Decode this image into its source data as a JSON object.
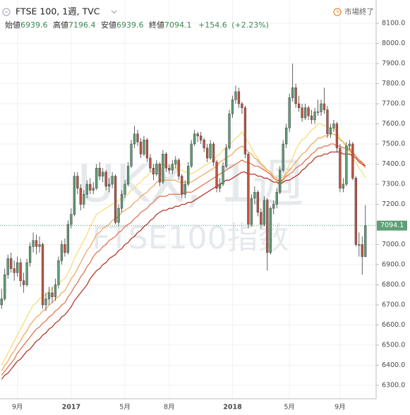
{
  "chart_data": {
    "type": "candlestick",
    "symbol": "FTSE 100, 1週, TVC",
    "ohlc_labels": [
      "始値",
      "高値",
      "安値",
      "終値"
    ],
    "change": "+154.6",
    "change_pct": "(+2.23%)",
    "status": "市場終了",
    "watermark": [
      "UKX, 1週",
      "FTSE100指数"
    ],
    "up_color": "#5f9f76",
    "down_color": "#c2533f",
    "grid": true,
    "ylim": [
      6233,
      8216
    ],
    "yticks": [
      {
        "value": 6300,
        "label": "6300.0"
      },
      {
        "value": 6400,
        "label": "6400.0"
      },
      {
        "value": 6500,
        "label": "6500.0"
      },
      {
        "value": 6600,
        "label": "6600.0"
      },
      {
        "value": 6700,
        "label": "6700.0"
      },
      {
        "value": 6800,
        "label": "6800.0"
      },
      {
        "value": 6900,
        "label": "6900.0"
      },
      {
        "value": 7000,
        "label": "7000.0"
      },
      {
        "value": 7100,
        "label": "7100.0"
      },
      {
        "value": 7200,
        "label": "7200.0"
      },
      {
        "value": 7300,
        "label": "7300.0"
      },
      {
        "value": 7400,
        "label": "7400.0"
      },
      {
        "value": 7500,
        "label": "7500.0"
      },
      {
        "value": 7600,
        "label": "7600.0"
      },
      {
        "value": 7700,
        "label": "7700.0"
      },
      {
        "value": 7800,
        "label": "7800.0"
      },
      {
        "value": 7900,
        "label": "7900.0"
      },
      {
        "value": 8000,
        "label": "8000.0"
      },
      {
        "value": 8100,
        "label": "8100.0"
      }
    ],
    "categories": [
      null,
      null,
      null,
      null,
      null,
      "9月",
      null,
      null,
      null,
      null,
      null,
      null,
      null,
      null,
      null,
      null,
      null,
      null,
      null,
      null,
      null,
      null,
      "2017",
      null,
      null,
      null,
      null,
      null,
      null,
      null,
      null,
      null,
      null,
      null,
      null,
      null,
      null,
      null,
      null,
      "5月",
      null,
      null,
      null,
      null,
      null,
      null,
      null,
      null,
      null,
      null,
      null,
      null,
      null,
      "8月",
      null,
      null,
      null,
      null,
      null,
      null,
      null,
      null,
      null,
      null,
      null,
      null,
      null,
      null,
      null,
      null,
      null,
      null,
      null,
      "2018",
      null,
      null,
      null,
      null,
      null,
      null,
      null,
      null,
      null,
      null,
      null,
      null,
      null,
      null,
      null,
      null,
      null,
      "5月",
      null,
      null,
      null,
      null,
      null,
      null,
      null,
      null,
      null,
      null,
      null,
      null,
      null,
      null,
      null,
      "9月",
      null,
      null,
      null,
      null,
      null,
      null,
      null,
      null
    ],
    "candles": [
      [
        6700,
        6780,
        6680,
        6730
      ],
      [
        6730,
        6880,
        6720,
        6850
      ],
      [
        6850,
        6950,
        6830,
        6930
      ],
      [
        6930,
        6960,
        6860,
        6880
      ],
      [
        6880,
        6920,
        6820,
        6860
      ],
      [
        6860,
        6940,
        6840,
        6910
      ],
      [
        6910,
        6930,
        6790,
        6820
      ],
      [
        6820,
        6860,
        6760,
        6800
      ],
      [
        6800,
        6930,
        6790,
        6910
      ],
      [
        6910,
        7010,
        6890,
        6990
      ],
      [
        6990,
        7060,
        6960,
        7020
      ],
      [
        7020,
        7050,
        6950,
        6990
      ],
      [
        6990,
        7040,
        6960,
        7000
      ],
      [
        7000,
        7010,
        6680,
        6700
      ],
      [
        6700,
        6760,
        6670,
        6730
      ],
      [
        6730,
        6790,
        6700,
        6760
      ],
      [
        6760,
        6790,
        6710,
        6740
      ],
      [
        6740,
        6830,
        6720,
        6800
      ],
      [
        6800,
        6940,
        6780,
        6920
      ],
      [
        6920,
        7020,
        6900,
        7000
      ],
      [
        7000,
        7030,
        6940,
        6960
      ],
      [
        6960,
        7120,
        6950,
        7100
      ],
      [
        7100,
        7180,
        7080,
        7150
      ],
      [
        7150,
        7360,
        7140,
        7340
      ],
      [
        7340,
        7360,
        7250,
        7280
      ],
      [
        7280,
        7300,
        7170,
        7200
      ],
      [
        7200,
        7270,
        7180,
        7250
      ],
      [
        7250,
        7320,
        7230,
        7300
      ],
      [
        7300,
        7330,
        7250,
        7270
      ],
      [
        7270,
        7310,
        7250,
        7280
      ],
      [
        7280,
        7400,
        7270,
        7380
      ],
      [
        7380,
        7410,
        7320,
        7340
      ],
      [
        7340,
        7380,
        7310,
        7360
      ],
      [
        7360,
        7370,
        7270,
        7290
      ],
      [
        7290,
        7330,
        7260,
        7300
      ],
      [
        7300,
        7360,
        7280,
        7340
      ],
      [
        7340,
        7350,
        7100,
        7110
      ],
      [
        7110,
        7200,
        7090,
        7180
      ],
      [
        7180,
        7270,
        7160,
        7250
      ],
      [
        7250,
        7320,
        7230,
        7300
      ],
      [
        7300,
        7410,
        7290,
        7390
      ],
      [
        7390,
        7520,
        7380,
        7500
      ],
      [
        7500,
        7590,
        7480,
        7550
      ],
      [
        7550,
        7570,
        7490,
        7510
      ],
      [
        7510,
        7530,
        7430,
        7450
      ],
      [
        7450,
        7540,
        7440,
        7520
      ],
      [
        7520,
        7530,
        7410,
        7430
      ],
      [
        7430,
        7450,
        7360,
        7380
      ],
      [
        7380,
        7400,
        7320,
        7350
      ],
      [
        7350,
        7420,
        7340,
        7400
      ],
      [
        7400,
        7410,
        7290,
        7310
      ],
      [
        7310,
        7470,
        7300,
        7450
      ],
      [
        7450,
        7460,
        7360,
        7380
      ],
      [
        7380,
        7400,
        7350,
        7370
      ],
      [
        7370,
        7420,
        7350,
        7400
      ],
      [
        7400,
        7440,
        7380,
        7420
      ],
      [
        7420,
        7430,
        7320,
        7340
      ],
      [
        7340,
        7350,
        7230,
        7250
      ],
      [
        7250,
        7320,
        7230,
        7300
      ],
      [
        7300,
        7410,
        7290,
        7390
      ],
      [
        7390,
        7520,
        7380,
        7500
      ],
      [
        7500,
        7570,
        7490,
        7550
      ],
      [
        7550,
        7560,
        7510,
        7540
      ],
      [
        7540,
        7560,
        7500,
        7520
      ],
      [
        7520,
        7530,
        7460,
        7480
      ],
      [
        7480,
        7500,
        7410,
        7430
      ],
      [
        7430,
        7520,
        7420,
        7500
      ],
      [
        7500,
        7510,
        7390,
        7410
      ],
      [
        7410,
        7420,
        7260,
        7280
      ],
      [
        7280,
        7330,
        7260,
        7300
      ],
      [
        7300,
        7410,
        7290,
        7390
      ],
      [
        7390,
        7500,
        7380,
        7480
      ],
      [
        7480,
        7670,
        7470,
        7650
      ],
      [
        7650,
        7740,
        7630,
        7720
      ],
      [
        7720,
        7790,
        7700,
        7760
      ],
      [
        7760,
        7780,
        7680,
        7700
      ],
      [
        7700,
        7710,
        7650,
        7680
      ],
      [
        7680,
        7690,
        7430,
        7450
      ],
      [
        7450,
        7460,
        7080,
        7100
      ],
      [
        7100,
        7250,
        7090,
        7230
      ],
      [
        7230,
        7290,
        7200,
        7260
      ],
      [
        7260,
        7270,
        7140,
        7160
      ],
      [
        7160,
        7180,
        7080,
        7100
      ],
      [
        7100,
        7240,
        7090,
        7220
      ],
      [
        7220,
        7230,
        6870,
        6960
      ],
      [
        6960,
        7190,
        6950,
        7180
      ],
      [
        7180,
        7220,
        7150,
        7200
      ],
      [
        7200,
        7280,
        7180,
        7260
      ],
      [
        7260,
        7390,
        7250,
        7370
      ],
      [
        7370,
        7520,
        7360,
        7500
      ],
      [
        7500,
        7600,
        7480,
        7580
      ],
      [
        7580,
        7750,
        7560,
        7730
      ],
      [
        7730,
        7900,
        7710,
        7780
      ],
      [
        7780,
        7800,
        7680,
        7700
      ],
      [
        7700,
        7740,
        7660,
        7680
      ],
      [
        7680,
        7700,
        7610,
        7630
      ],
      [
        7630,
        7700,
        7620,
        7680
      ],
      [
        7680,
        7690,
        7620,
        7640
      ],
      [
        7640,
        7670,
        7600,
        7620
      ],
      [
        7620,
        7680,
        7600,
        7660
      ],
      [
        7660,
        7720,
        7640,
        7660
      ],
      [
        7660,
        7720,
        7640,
        7700
      ],
      [
        7700,
        7780,
        7650,
        7670
      ],
      [
        7670,
        7690,
        7530,
        7550
      ],
      [
        7550,
        7600,
        7530,
        7580
      ],
      [
        7580,
        7620,
        7560,
        7600
      ],
      [
        7600,
        7610,
        7460,
        7480
      ],
      [
        7480,
        7500,
        7260,
        7280
      ],
      [
        7280,
        7330,
        7260,
        7300
      ],
      [
        7300,
        7510,
        7290,
        7490
      ],
      [
        7490,
        7520,
        7470,
        7500
      ],
      [
        7500,
        7510,
        7320,
        7330
      ],
      [
        7330,
        7340,
        6990,
        7000
      ],
      [
        7000,
        7060,
        6940,
        7000
      ],
      [
        7000,
        7040,
        6850,
        6940
      ],
      [
        6939.6,
        7196.4,
        6939.6,
        7094.1
      ]
    ],
    "ribbon": [
      {
        "color": "#f6dd7c",
        "values": [
          6400,
          6430,
          6460,
          6490,
          6520,
          6550,
          6580,
          6610,
          6640,
          6670,
          6700,
          6710,
          6730,
          6740,
          6750,
          6770,
          6780,
          6790,
          6800,
          6820,
          6830,
          6860,
          6890,
          6930,
          6960,
          6990,
          7020,
          7050,
          7090,
          7120,
          7150,
          7160,
          7170,
          7180,
          7190,
          7200,
          7210,
          7220,
          7230,
          7240,
          7250,
          7270,
          7280,
          7300,
          7310,
          7330,
          7340,
          7360,
          7370,
          7390,
          7400,
          7400,
          7390,
          7390,
          7380,
          7380,
          7370,
          7370,
          7360,
          7360,
          7350,
          7360,
          7370,
          7380,
          7390,
          7400,
          7410,
          7420,
          7440,
          7450,
          7470,
          7480,
          7500,
          7510,
          7530,
          7540,
          7560,
          7530,
          7510,
          7480,
          7450,
          7430,
          7400,
          7380,
          7360,
          7350,
          7330,
          7310,
          7290,
          7330,
          7360,
          7400,
          7430,
          7470,
          7500,
          7520,
          7530,
          7550,
          7570,
          7580,
          7600,
          7600,
          7590,
          7590,
          7580,
          7580,
          7560,
          7530,
          7510,
          7480,
          7460,
          7430,
          7410,
          7380,
          7360,
          7330
        ]
      },
      {
        "color": "#f0ab62",
        "values": [
          6370,
          6400,
          6420,
          6450,
          6470,
          6500,
          6520,
          6550,
          6570,
          6600,
          6620,
          6640,
          6650,
          6670,
          6680,
          6700,
          6710,
          6730,
          6740,
          6760,
          6770,
          6800,
          6830,
          6850,
          6880,
          6910,
          6940,
          6970,
          6990,
          7020,
          7050,
          7060,
          7080,
          7090,
          7100,
          7120,
          7130,
          7140,
          7160,
          7170,
          7180,
          7190,
          7210,
          7220,
          7240,
          7250,
          7260,
          7280,
          7290,
          7310,
          7320,
          7320,
          7320,
          7320,
          7320,
          7320,
          7310,
          7310,
          7310,
          7310,
          7310,
          7320,
          7330,
          7340,
          7350,
          7360,
          7370,
          7380,
          7390,
          7410,
          7420,
          7430,
          7440,
          7450,
          7470,
          7480,
          7490,
          7480,
          7460,
          7450,
          7430,
          7420,
          7400,
          7390,
          7370,
          7360,
          7340,
          7330,
          7310,
          7330,
          7350,
          7370,
          7390,
          7410,
          7430,
          7450,
          7460,
          7480,
          7500,
          7510,
          7530,
          7530,
          7540,
          7540,
          7550,
          7550,
          7540,
          7520,
          7510,
          7490,
          7480,
          7460,
          7440,
          7420,
          7400,
          7380
        ]
      },
      {
        "color": "#e27653",
        "values": [
          6350,
          6370,
          6390,
          6410,
          6430,
          6460,
          6480,
          6500,
          6520,
          6540,
          6560,
          6580,
          6590,
          6610,
          6620,
          6640,
          6650,
          6670,
          6680,
          6700,
          6710,
          6740,
          6760,
          6790,
          6810,
          6840,
          6860,
          6890,
          6910,
          6940,
          6960,
          6970,
          6990,
          7000,
          7020,
          7030,
          7040,
          7060,
          7070,
          7090,
          7100,
          7110,
          7130,
          7140,
          7160,
          7170,
          7180,
          7200,
          7210,
          7230,
          7240,
          7240,
          7240,
          7250,
          7250,
          7250,
          7250,
          7250,
          7260,
          7260,
          7260,
          7270,
          7280,
          7290,
          7300,
          7310,
          7320,
          7330,
          7340,
          7350,
          7360,
          7370,
          7380,
          7390,
          7400,
          7410,
          7420,
          7410,
          7410,
          7400,
          7390,
          7390,
          7380,
          7370,
          7360,
          7350,
          7330,
          7320,
          7310,
          7320,
          7340,
          7350,
          7360,
          7380,
          7390,
          7400,
          7420,
          7430,
          7450,
          7460,
          7480,
          7480,
          7490,
          7490,
          7500,
          7500,
          7490,
          7490,
          7480,
          7480,
          7470,
          7450,
          7440,
          7420,
          7410,
          7390
        ]
      },
      {
        "color": "#b5392c",
        "values": [
          6330,
          6350,
          6360,
          6380,
          6400,
          6420,
          6430,
          6450,
          6470,
          6480,
          6500,
          6520,
          6530,
          6550,
          6560,
          6580,
          6590,
          6610,
          6620,
          6640,
          6650,
          6670,
          6690,
          6720,
          6740,
          6760,
          6780,
          6800,
          6830,
          6850,
          6870,
          6880,
          6900,
          6910,
          6930,
          6940,
          6950,
          6970,
          6980,
          7000,
          7010,
          7030,
          7040,
          7060,
          7070,
          7090,
          7100,
          7120,
          7130,
          7150,
          7160,
          7170,
          7170,
          7180,
          7180,
          7190,
          7190,
          7200,
          7200,
          7210,
          7210,
          7220,
          7230,
          7240,
          7250,
          7260,
          7270,
          7280,
          7290,
          7300,
          7310,
          7320,
          7320,
          7330,
          7340,
          7350,
          7360,
          7360,
          7350,
          7350,
          7350,
          7340,
          7340,
          7330,
          7330,
          7320,
          7310,
          7310,
          7300,
          7310,
          7320,
          7320,
          7330,
          7340,
          7350,
          7370,
          7380,
          7400,
          7410,
          7430,
          7440,
          7440,
          7450,
          7450,
          7460,
          7460,
          7460,
          7460,
          7450,
          7450,
          7450,
          7440,
          7430,
          7410,
          7400,
          7390
        ]
      }
    ]
  }
}
